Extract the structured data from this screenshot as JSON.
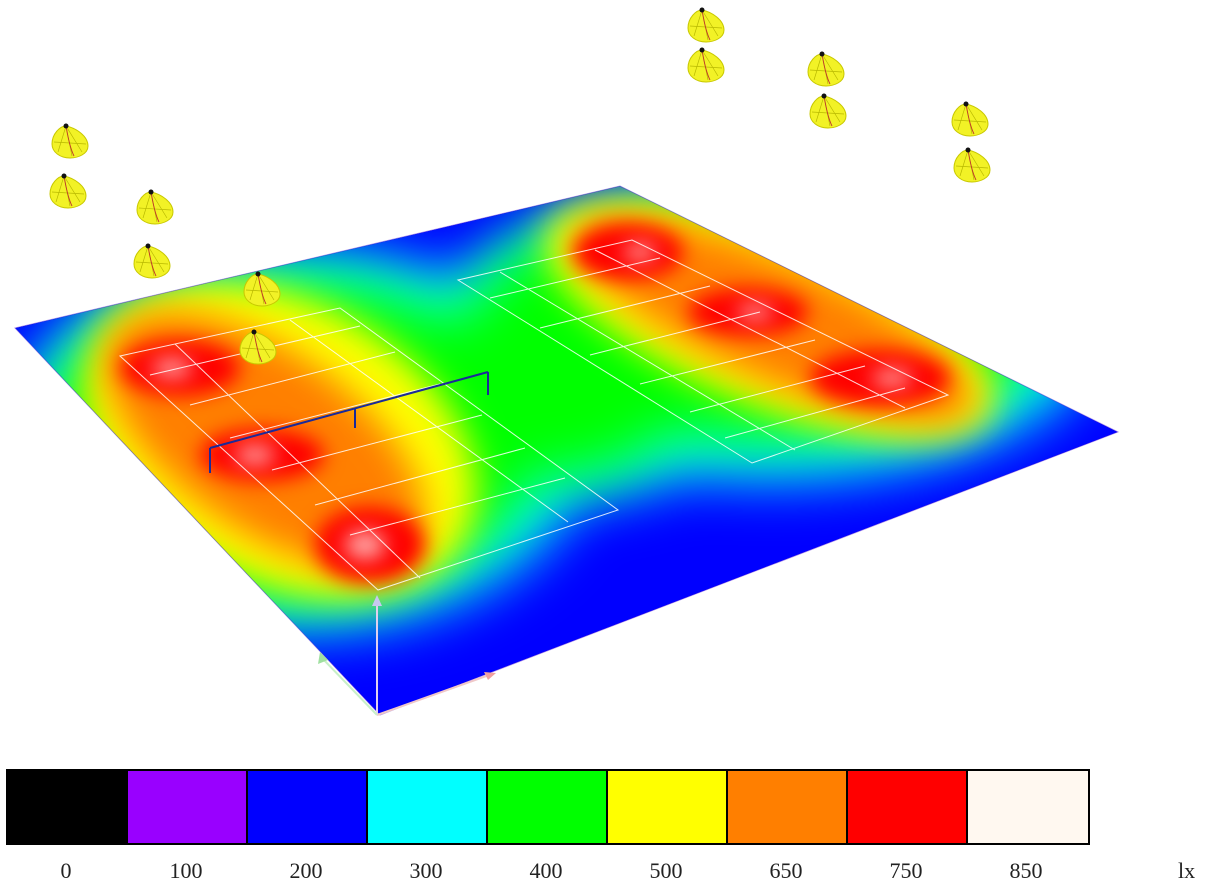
{
  "legend": {
    "unit": "lx",
    "levels": [
      {
        "label": "0",
        "color": "#000000"
      },
      {
        "label": "100",
        "color": "#9900ff"
      },
      {
        "label": "200",
        "color": "#0000ff"
      },
      {
        "label": "300",
        "color": "#00ffff"
      },
      {
        "label": "400",
        "color": "#00ff00"
      },
      {
        "label": "500",
        "color": "#ffff00"
      },
      {
        "label": "650",
        "color": "#ff7f00"
      },
      {
        "label": "750",
        "color": "#ff0000"
      },
      {
        "label": "850",
        "color": "#fff8f0"
      }
    ]
  },
  "fixtures": {
    "icon": "floodlight-icon",
    "color": "#f2f226"
  }
}
